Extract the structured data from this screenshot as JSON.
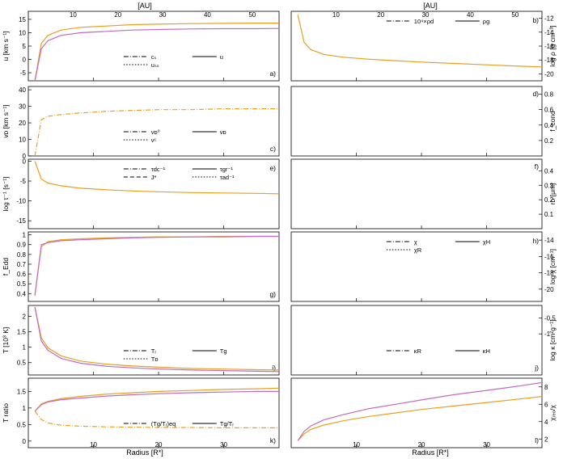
{
  "figure": {
    "top_axis_label": "[AU]",
    "bottom_axis_label": "Radius [R*]",
    "top_ticks": [
      10,
      20,
      30,
      40,
      50
    ],
    "bottom_ticks": [
      10,
      20,
      30
    ],
    "x_range": [
      0,
      38.5
    ]
  },
  "colors": {
    "orange": "#e8a020",
    "pink": "#c06cc0",
    "grid": "#b0b0b0"
  },
  "panels": [
    {
      "id": "a",
      "side": "left",
      "ylabel": "u [km s⁻¹]",
      "yticks": [
        -5,
        0,
        5,
        10,
        15
      ],
      "ylim": [
        -8,
        18
      ],
      "legend": [
        {
          "style": "dashdot",
          "label": "cₛ"
        },
        {
          "style": "solid",
          "label": "u"
        },
        {
          "style": "dotted",
          "label": "uₛₛ"
        }
      ]
    },
    {
      "id": "b",
      "side": "right",
      "ylabel": "log ρ [g cm⁻³]",
      "yticks": [
        -20,
        -18,
        -16,
        -14,
        -12
      ],
      "ylim": [
        -21,
        -11
      ],
      "legend": [
        {
          "style": "dashdot",
          "label": "10⁴×ρd"
        },
        {
          "style": "solid",
          "label": "ρg"
        }
      ]
    },
    {
      "id": "c",
      "side": "left",
      "ylabel": "vᴅ [km s⁻¹]",
      "yticks": [
        0,
        10,
        20,
        30,
        40
      ],
      "ylim": [
        0,
        42
      ],
      "legend": [
        {
          "style": "dashdot",
          "label": "vᴅ⁰"
        },
        {
          "style": "solid",
          "label": "vᴅ"
        },
        {
          "style": "dotted",
          "label": "vᶜ"
        }
      ]
    },
    {
      "id": "d",
      "side": "right",
      "ylabel": "f_cond",
      "yticks": [
        0.2,
        0.4,
        0.6,
        0.8
      ],
      "ylim": [
        0,
        0.9
      ],
      "legend": []
    },
    {
      "id": "e",
      "side": "left",
      "ylabel": "log τ⁻¹ [s⁻¹]",
      "yticks": [
        -15,
        -10,
        -5,
        0
      ],
      "ylim": [
        -17,
        0.5
      ],
      "legend": [
        {
          "style": "dashdot",
          "label": "τdc⁻¹"
        },
        {
          "style": "solid",
          "label": "τgr⁻¹"
        },
        {
          "style": "dashed",
          "label": "J*"
        },
        {
          "style": "dotted",
          "label": "τad⁻¹"
        }
      ]
    },
    {
      "id": "f",
      "side": "right",
      "ylabel": "rᴅ [μm]",
      "yticks": [
        0.1,
        0.2,
        0.3,
        0.4
      ],
      "ylim": [
        0,
        0.48
      ],
      "legend": []
    },
    {
      "id": "g",
      "side": "left",
      "ylabel": "f_Edd",
      "yticks": [
        0.4,
        0.5,
        0.6,
        0.7,
        0.8,
        0.9,
        1.0
      ],
      "ylim": [
        0.32,
        1.03
      ],
      "legend": []
    },
    {
      "id": "h",
      "side": "right",
      "ylabel": "log χ [cm⁻¹]",
      "yticks": [
        -20,
        -18,
        -16,
        -14
      ],
      "ylim": [
        -21.5,
        -13
      ],
      "legend": [
        {
          "style": "dashdot",
          "label": "χ"
        },
        {
          "style": "solid",
          "label": "χH"
        },
        {
          "style": "dotted",
          "label": "χR"
        }
      ]
    },
    {
      "id": "i",
      "side": "left",
      "ylabel": "T [10³ K]",
      "yticks": [
        0.5,
        1.0,
        1.5,
        2.0
      ],
      "ylim": [
        0.1,
        2.35
      ],
      "legend": [
        {
          "style": "dashdot",
          "label": "Tᵣ"
        },
        {
          "style": "solid",
          "label": "Tg"
        },
        {
          "style": "dotted",
          "label": "Tᴅ"
        }
      ]
    },
    {
      "id": "j",
      "side": "right",
      "ylabel": "log κ [cm²g⁻¹]",
      "yticks": [
        -1.0,
        -0.5
      ],
      "ylim": [
        -2.3,
        -0.1
      ],
      "legend": [
        {
          "style": "dashdot",
          "label": "κR"
        },
        {
          "style": "solid",
          "label": "κH"
        }
      ]
    },
    {
      "id": "k",
      "side": "left",
      "ylabel": "T ratio",
      "yticks": [
        0.0,
        0.5,
        1.0,
        1.5
      ],
      "ylim": [
        -0.2,
        1.9
      ],
      "legend": [
        {
          "style": "dashdot",
          "label": "(Tg/Tᵣ)eq"
        },
        {
          "style": "solid",
          "label": "Tg/Tᵣ"
        }
      ]
    },
    {
      "id": "l",
      "side": "right",
      "ylabel": "χᵣₑₒ/χ",
      "yticks": [
        2,
        4,
        6,
        8
      ],
      "ylim": [
        1,
        9
      ],
      "legend": []
    }
  ],
  "chart_data": {
    "type": "line",
    "x": [
      1,
      2,
      3,
      5,
      8,
      12,
      16,
      20,
      25,
      30,
      35,
      38.5
    ],
    "series": {
      "a_u_orange": [
        -8,
        6,
        9,
        11,
        12,
        12.5,
        13,
        13.2,
        13.4,
        13.5,
        13.6,
        13.6
      ],
      "a_u_pink": [
        -8,
        4,
        7,
        9,
        10,
        10.5,
        11,
        11.2,
        11.4,
        11.5,
        11.5,
        11.6
      ],
      "b_rho_orange": [
        -11.5,
        -15.5,
        -16.5,
        -17.2,
        -17.6,
        -17.9,
        -18.1,
        -18.3,
        -18.5,
        -18.7,
        -18.9,
        -19
      ],
      "c_vd_orange": [
        0,
        22,
        24,
        25,
        26,
        27,
        27.5,
        28,
        28,
        28.5,
        28.5,
        28.5
      ],
      "e_gr_orange": [
        0,
        -4.5,
        -5.5,
        -6.2,
        -6.8,
        -7.2,
        -7.5,
        -7.7,
        -7.9,
        -8.0,
        -8.1,
        -8.2
      ],
      "g_fedd_orange": [
        0.38,
        0.88,
        0.93,
        0.95,
        0.96,
        0.97,
        0.975,
        0.98,
        0.98,
        0.985,
        0.985,
        0.985
      ],
      "g_fedd_pink": [
        0.38,
        0.9,
        0.92,
        0.94,
        0.95,
        0.96,
        0.97,
        0.975,
        0.98,
        0.98,
        0.985,
        0.985
      ],
      "i_tg_orange": [
        2.3,
        1.3,
        0.98,
        0.72,
        0.55,
        0.45,
        0.39,
        0.35,
        0.31,
        0.29,
        0.27,
        0.26
      ],
      "i_tg_pink": [
        2.3,
        1.2,
        0.9,
        0.64,
        0.48,
        0.38,
        0.33,
        0.29,
        0.26,
        0.24,
        0.22,
        0.21
      ],
      "k_ratio_orange": [
        0.9,
        1.12,
        1.2,
        1.28,
        1.35,
        1.42,
        1.46,
        1.5,
        1.53,
        1.56,
        1.58,
        1.6
      ],
      "k_ratio_pink": [
        0.9,
        1.1,
        1.18,
        1.25,
        1.3,
        1.36,
        1.4,
        1.43,
        1.46,
        1.48,
        1.5,
        1.5
      ],
      "k_eq_orange": [
        0.9,
        0.65,
        0.55,
        0.48,
        0.45,
        0.43,
        0.42,
        0.41,
        0.41,
        0.4,
        0.4,
        0.4
      ],
      "l_orange": [
        1.8,
        2.6,
        3.1,
        3.6,
        4.1,
        4.6,
        5.0,
        5.4,
        5.8,
        6.2,
        6.6,
        6.9
      ],
      "l_pink": [
        1.8,
        2.9,
        3.5,
        4.2,
        4.8,
        5.5,
        6.0,
        6.5,
        7.1,
        7.6,
        8.1,
        8.5
      ]
    }
  }
}
